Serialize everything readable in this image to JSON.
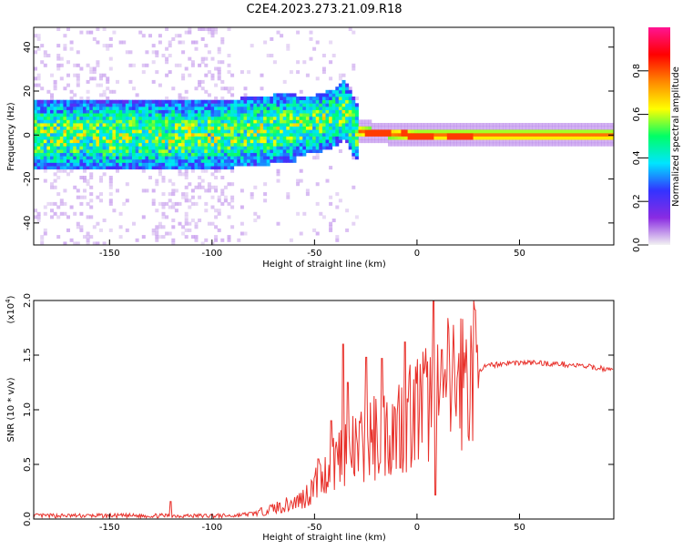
{
  "title": "C2E4.2023.273.21.09.R18",
  "colors": {
    "snr_line": "#e8302a",
    "colorbar_stops": [
      "#f2f2f2",
      "#8a2be2",
      "#3333ff",
      "#00e5ff",
      "#00ff66",
      "#ffff00",
      "#ff8800",
      "#ff0000",
      "#ff1493"
    ]
  },
  "chart_data": [
    {
      "type": "heatmap",
      "xlabel": "Height of straight line (km)",
      "ylabel": "Frequency (Hz)",
      "xlim": [
        -187,
        96
      ],
      "ylim": [
        -50,
        49
      ],
      "x_ticks": [
        -150,
        -100,
        -50,
        0,
        50
      ],
      "x_tick_labels": [
        "-150",
        "-100",
        "-50",
        "0",
        "50"
      ],
      "y_ticks": [
        40,
        20,
        0,
        -20,
        -40
      ],
      "y_tick_labels": [
        "40",
        "20",
        "0",
        "-20",
        "-40"
      ],
      "colorbar": {
        "label": "Normalized spectral amplitude",
        "range": [
          0.0,
          1.0
        ],
        "ticks": [
          0.0,
          0.2,
          0.4,
          0.6,
          0.8
        ],
        "tick_labels": [
          "0.0",
          "0.2",
          "0.4",
          "0.6",
          "0.8"
        ]
      },
      "ridge": {
        "x": [
          -187,
          -150,
          -100,
          -75,
          -50,
          -40,
          -35,
          -30,
          -20,
          0,
          20,
          50,
          96
        ],
        "frequency": [
          0,
          0,
          0,
          2,
          5,
          8,
          12,
          2,
          1,
          0,
          0,
          0,
          0
        ]
      }
    },
    {
      "type": "line",
      "xlabel": "Height of straight line (km)",
      "ylabel": "SNR (10 * v/v)",
      "y_multiplier_label": "(x10",
      "y_multiplier_exp": "4",
      "y_multiplier_close": ")",
      "xlim": [
        -187,
        96
      ],
      "ylim": [
        0,
        2.0
      ],
      "x_ticks": [
        -150,
        -100,
        -50,
        0,
        50
      ],
      "x_tick_labels": [
        "-150",
        "-100",
        "-50",
        "0",
        "50"
      ],
      "y_ticks": [
        0.0,
        0.5,
        1.0,
        1.5,
        2.0
      ],
      "y_tick_labels": [
        "0.0",
        "0.5",
        "1.0",
        "1.5",
        "2.0"
      ],
      "series": [
        {
          "x": [
            -187,
            -170,
            -150,
            -120,
            -100,
            -90,
            -80,
            -75,
            -70,
            -65,
            -60,
            -55,
            -50,
            -45,
            -40,
            -35,
            -30,
            -25,
            -20,
            -15,
            -10,
            -5,
            0,
            5,
            10,
            15,
            20,
            25,
            30,
            35,
            40,
            45,
            50,
            55,
            60,
            65,
            70,
            75,
            80,
            85,
            90,
            96
          ],
          "values": [
            0.03,
            0.03,
            0.03,
            0.03,
            0.03,
            0.03,
            0.05,
            0.07,
            0.1,
            0.12,
            0.15,
            0.2,
            0.3,
            0.4,
            0.55,
            0.65,
            0.6,
            0.7,
            0.75,
            0.8,
            0.85,
            0.95,
            1.0,
            1.05,
            1.1,
            1.2,
            1.27,
            1.33,
            1.37,
            1.4,
            1.42,
            1.43,
            1.43,
            1.43,
            1.43,
            1.42,
            1.42,
            1.41,
            1.4,
            1.39,
            1.38,
            1.36
          ]
        }
      ],
      "spikes": [
        {
          "x": -120,
          "value": 0.16
        },
        {
          "x": -48,
          "value": 0.55
        },
        {
          "x": -42,
          "value": 0.9
        },
        {
          "x": -36,
          "value": 1.6
        },
        {
          "x": -34,
          "value": 1.25
        },
        {
          "x": -25,
          "value": 1.48
        },
        {
          "x": -17,
          "value": 1.47
        },
        {
          "x": -6,
          "value": 1.62
        },
        {
          "x": 8,
          "value": 2.0
        },
        {
          "x": 9,
          "value": 0.22
        },
        {
          "x": 12,
          "value": 1.55
        }
      ]
    }
  ]
}
